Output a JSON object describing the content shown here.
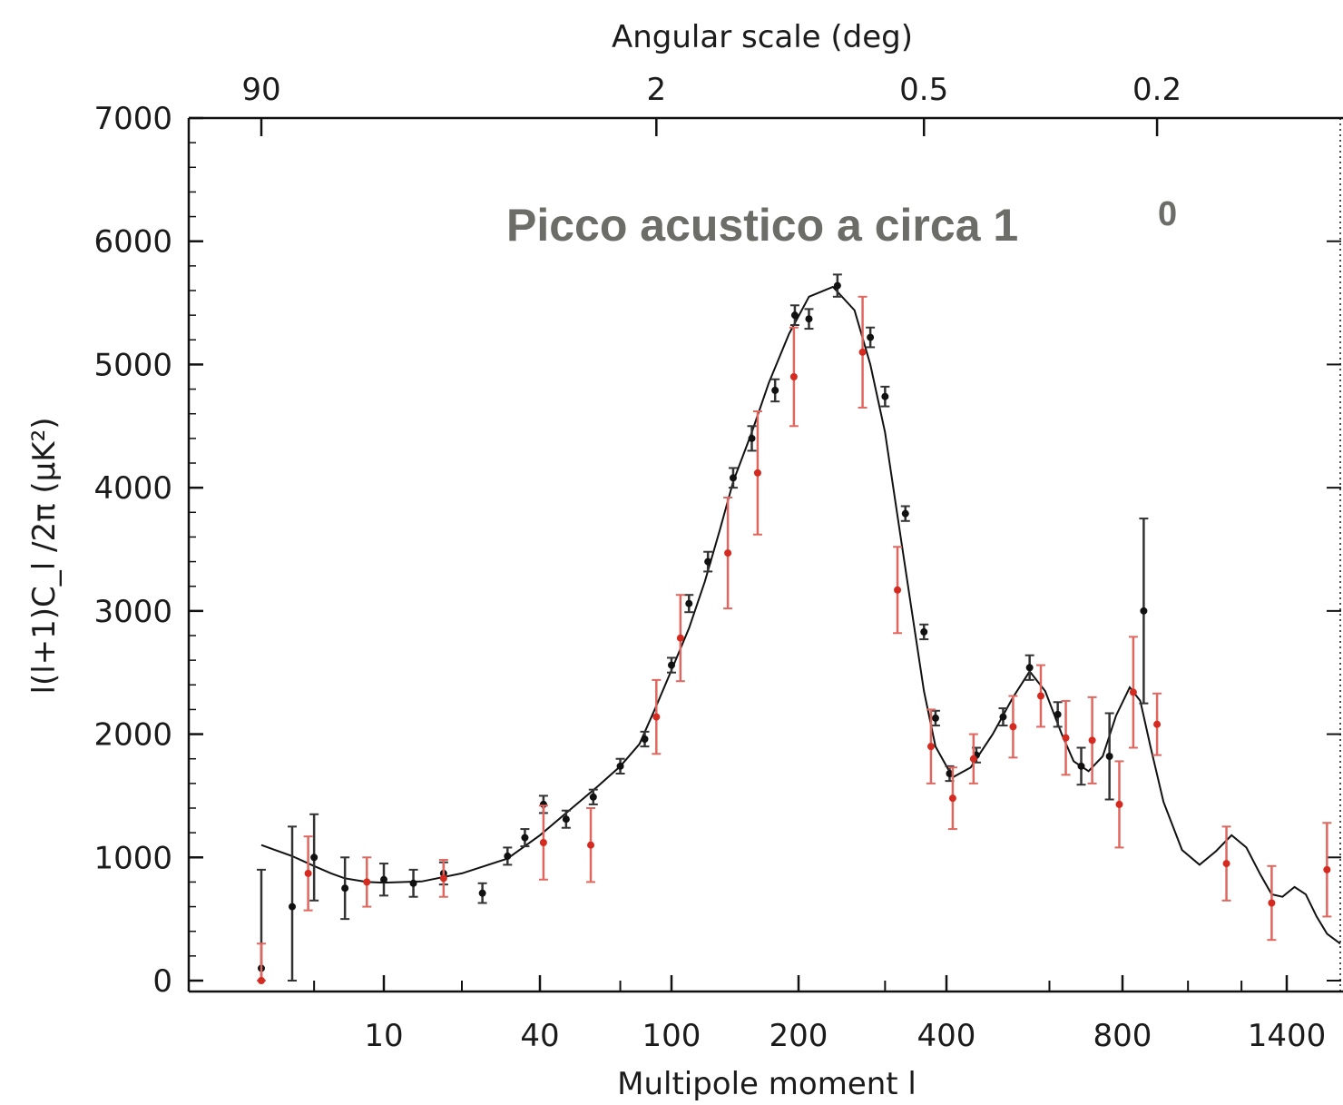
{
  "chart_data": {
    "type": "scatter",
    "title": "",
    "annotation": {
      "text": "Picco acustico a circa 1",
      "superscript": "0"
    },
    "xlabel": "Multipole moment l",
    "ylabel": "l(l+1)C_l /2π (μK²)",
    "top_xlabel": "Angular scale (deg)",
    "x_scale": "nonlinear (warped log)",
    "xlim": [
      1.5,
      1700
    ],
    "ylim": [
      0,
      7000
    ],
    "x_ticks": [
      10,
      40,
      100,
      200,
      400,
      800,
      1400
    ],
    "x_tick_labels": [
      "10",
      "40",
      "100",
      "200",
      "400",
      "800",
      "1400"
    ],
    "y_ticks": [
      0,
      1000,
      2000,
      3000,
      4000,
      5000,
      6000,
      7000
    ],
    "y_tick_labels": [
      "0",
      "1000",
      "2000",
      "3000",
      "4000",
      "5000",
      "6000",
      "7000"
    ],
    "top_ticks": [
      "90",
      "2",
      "0.5",
      "0.2"
    ],
    "top_tick_positions_l": [
      2,
      90,
      360,
      900
    ],
    "series": [
      {
        "color": "#111111",
        "points": [
          {
            "x": 2,
            "y": 100,
            "err": 800
          },
          {
            "x": 3,
            "y": 600,
            "err": 650
          },
          {
            "x": 4,
            "y": 1000,
            "err": 350
          },
          {
            "x": 6,
            "y": 750,
            "err": 250
          },
          {
            "x": 10,
            "y": 820,
            "err": 130
          },
          {
            "x": 13,
            "y": 790,
            "err": 110
          },
          {
            "x": 17,
            "y": 870,
            "err": 90
          },
          {
            "x": 24,
            "y": 710,
            "err": 80
          },
          {
            "x": 30,
            "y": 1010,
            "err": 70
          },
          {
            "x": 35,
            "y": 1160,
            "err": 70
          },
          {
            "x": 41,
            "y": 1430,
            "err": 70
          },
          {
            "x": 48,
            "y": 1310,
            "err": 70
          },
          {
            "x": 58,
            "y": 1490,
            "err": 60
          },
          {
            "x": 70,
            "y": 1740,
            "err": 60
          },
          {
            "x": 83,
            "y": 1960,
            "err": 60
          },
          {
            "x": 100,
            "y": 2560,
            "err": 60
          },
          {
            "x": 110,
            "y": 3060,
            "err": 70
          },
          {
            "x": 122,
            "y": 3400,
            "err": 80
          },
          {
            "x": 140,
            "y": 4080,
            "err": 80
          },
          {
            "x": 155,
            "y": 4400,
            "err": 100
          },
          {
            "x": 176,
            "y": 4790,
            "err": 90
          },
          {
            "x": 196,
            "y": 5400,
            "err": 80
          },
          {
            "x": 210,
            "y": 5370,
            "err": 80
          },
          {
            "x": 240,
            "y": 5640,
            "err": 90
          },
          {
            "x": 280,
            "y": 5220,
            "err": 80
          },
          {
            "x": 300,
            "y": 4740,
            "err": 80
          },
          {
            "x": 330,
            "y": 3790,
            "err": 60
          },
          {
            "x": 360,
            "y": 2830,
            "err": 60
          },
          {
            "x": 380,
            "y": 2130,
            "err": 60
          },
          {
            "x": 405,
            "y": 1680,
            "err": 60
          },
          {
            "x": 450,
            "y": 1830,
            "err": 60
          },
          {
            "x": 500,
            "y": 2140,
            "err": 70
          },
          {
            "x": 555,
            "y": 2540,
            "err": 100
          },
          {
            "x": 620,
            "y": 2160,
            "err": 100
          },
          {
            "x": 680,
            "y": 1740,
            "err": 150
          },
          {
            "x": 760,
            "y": 1820,
            "err": 350
          },
          {
            "x": 860,
            "y": 3000,
            "err": 750
          }
        ]
      },
      {
        "color": "#d42a20",
        "points": [
          {
            "x": 2,
            "y": 0,
            "err": 300
          },
          {
            "x": 3.7,
            "y": 870,
            "err": 300
          },
          {
            "x": 8,
            "y": 800,
            "err": 200
          },
          {
            "x": 17,
            "y": 830,
            "err": 150
          },
          {
            "x": 41,
            "y": 1120,
            "err": 300
          },
          {
            "x": 57,
            "y": 1100,
            "err": 300
          },
          {
            "x": 90,
            "y": 2140,
            "err": 300
          },
          {
            "x": 105,
            "y": 2780,
            "err": 350
          },
          {
            "x": 136,
            "y": 3470,
            "err": 450
          },
          {
            "x": 160,
            "y": 4120,
            "err": 500
          },
          {
            "x": 195,
            "y": 4900,
            "err": 400
          },
          {
            "x": 270,
            "y": 5100,
            "err": 450
          },
          {
            "x": 318,
            "y": 3170,
            "err": 350
          },
          {
            "x": 372,
            "y": 1900,
            "err": 300
          },
          {
            "x": 410,
            "y": 1480,
            "err": 250
          },
          {
            "x": 445,
            "y": 1800,
            "err": 200
          },
          {
            "x": 520,
            "y": 2060,
            "err": 250
          },
          {
            "x": 580,
            "y": 2310,
            "err": 250
          },
          {
            "x": 640,
            "y": 1970,
            "err": 300
          },
          {
            "x": 710,
            "y": 1950,
            "err": 350
          },
          {
            "x": 790,
            "y": 1430,
            "err": 350
          },
          {
            "x": 830,
            "y": 2340,
            "err": 450
          },
          {
            "x": 900,
            "y": 2080,
            "err": 250
          },
          {
            "x": 1140,
            "y": 950,
            "err": 300
          },
          {
            "x": 1330,
            "y": 630,
            "err": 300
          },
          {
            "x": 1620,
            "y": 900,
            "err": 380
          }
        ]
      }
    ],
    "model_curve": [
      [
        2,
        1100
      ],
      [
        3,
        1010
      ],
      [
        4,
        930
      ],
      [
        5,
        870
      ],
      [
        6,
        830
      ],
      [
        8,
        800
      ],
      [
        10,
        795
      ],
      [
        14,
        805
      ],
      [
        20,
        870
      ],
      [
        30,
        990
      ],
      [
        40,
        1180
      ],
      [
        50,
        1400
      ],
      [
        60,
        1580
      ],
      [
        70,
        1740
      ],
      [
        80,
        1920
      ],
      [
        90,
        2230
      ],
      [
        100,
        2520
      ],
      [
        110,
        2860
      ],
      [
        120,
        3240
      ],
      [
        130,
        3650
      ],
      [
        140,
        4050
      ],
      [
        155,
        4450
      ],
      [
        170,
        4850
      ],
      [
        190,
        5250
      ],
      [
        210,
        5550
      ],
      [
        235,
        5630
      ],
      [
        260,
        5440
      ],
      [
        280,
        5000
      ],
      [
        300,
        4450
      ],
      [
        320,
        3700
      ],
      [
        340,
        3000
      ],
      [
        360,
        2350
      ],
      [
        380,
        1900
      ],
      [
        410,
        1650
      ],
      [
        440,
        1730
      ],
      [
        480,
        2000
      ],
      [
        520,
        2300
      ],
      [
        555,
        2510
      ],
      [
        590,
        2350
      ],
      [
        630,
        2000
      ],
      [
        660,
        1780
      ],
      [
        700,
        1700
      ],
      [
        740,
        1820
      ],
      [
        780,
        2150
      ],
      [
        820,
        2380
      ],
      [
        850,
        2270
      ],
      [
        880,
        1900
      ],
      [
        920,
        1450
      ],
      [
        980,
        1060
      ],
      [
        1040,
        940
      ],
      [
        1100,
        1050
      ],
      [
        1160,
        1180
      ],
      [
        1220,
        1080
      ],
      [
        1280,
        860
      ],
      [
        1330,
        700
      ],
      [
        1380,
        680
      ],
      [
        1440,
        760
      ],
      [
        1500,
        700
      ],
      [
        1560,
        520
      ],
      [
        1620,
        380
      ],
      [
        1700,
        300
      ]
    ]
  }
}
